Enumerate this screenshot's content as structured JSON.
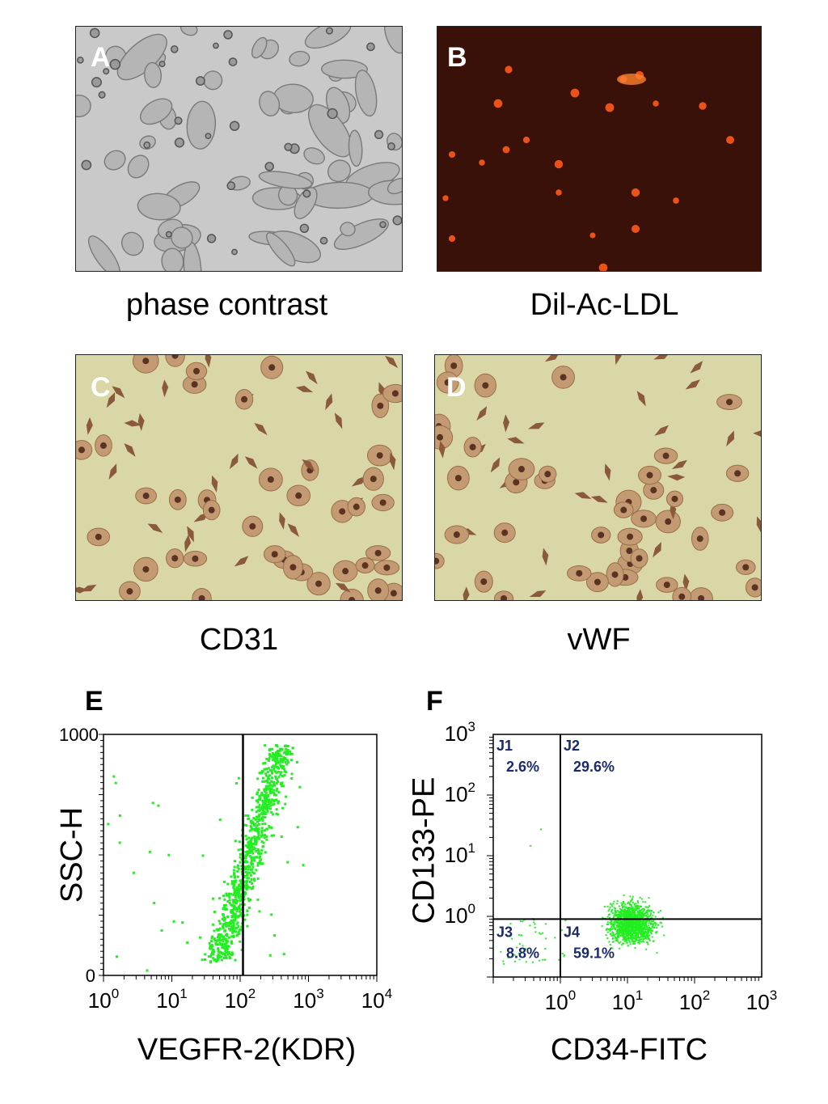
{
  "panels": {
    "A": {
      "letter": "A",
      "caption": "phase contrast"
    },
    "B": {
      "letter": "B",
      "caption": "Dil-Ac-LDL"
    },
    "C": {
      "letter": "C",
      "caption": "CD31"
    },
    "D": {
      "letter": "D",
      "caption": "vWF"
    },
    "E": {
      "letter": "E"
    },
    "F": {
      "letter": "F"
    }
  },
  "colors": {
    "phase_bg": "#c9c9c9",
    "ldl_bg": "#3a1108",
    "ldl_spot": "#ff5a1a",
    "ihc_bg": "#d9d7a6",
    "ihc_cell": "#8a5a3a",
    "flow_dots": "#22ee22",
    "quadrant_label": "#1a2a6a"
  },
  "chart_data": [
    {
      "type": "scatter",
      "panel": "E",
      "xlabel": "VEGFR-2(KDR)",
      "ylabel": "SSC-H",
      "x_scale": "log",
      "xlim": [
        1,
        10000
      ],
      "ylim": [
        0,
        1000
      ],
      "x_ticks": [
        {
          "base": "10",
          "exp": "0"
        },
        {
          "base": "10",
          "exp": "1"
        },
        {
          "base": "10",
          "exp": "2"
        },
        {
          "base": "10",
          "exp": "3"
        },
        {
          "base": "10",
          "exp": "4"
        }
      ],
      "y_ticks": [
        "0",
        "1000"
      ],
      "gate_x": 110,
      "cluster": {
        "x_range": [
          20,
          500
        ],
        "y_range": [
          60,
          960
        ]
      }
    },
    {
      "type": "scatter",
      "panel": "F",
      "xlabel": "CD34-FITC",
      "ylabel": "CD133-PE",
      "x_scale": "log",
      "y_scale": "log",
      "xlim": [
        0.1,
        1000
      ],
      "ylim": [
        0.1,
        1000
      ],
      "x_ticks": [
        {
          "base": "10",
          "exp": "0"
        },
        {
          "base": "10",
          "exp": "1"
        },
        {
          "base": "10",
          "exp": "2"
        },
        {
          "base": "10",
          "exp": "3"
        }
      ],
      "y_ticks": [
        {
          "base": "10",
          "exp": "0"
        },
        {
          "base": "10",
          "exp": "1"
        },
        {
          "base": "10",
          "exp": "2"
        },
        {
          "base": "10",
          "exp": "3"
        }
      ],
      "gate_x": 1,
      "gate_y": 0.9,
      "quadrants": [
        {
          "name": "J1",
          "percent": "2.6%"
        },
        {
          "name": "J2",
          "percent": "29.6%"
        },
        {
          "name": "J3",
          "percent": "8.8%"
        },
        {
          "name": "J4",
          "percent": "59.1%"
        }
      ]
    }
  ]
}
